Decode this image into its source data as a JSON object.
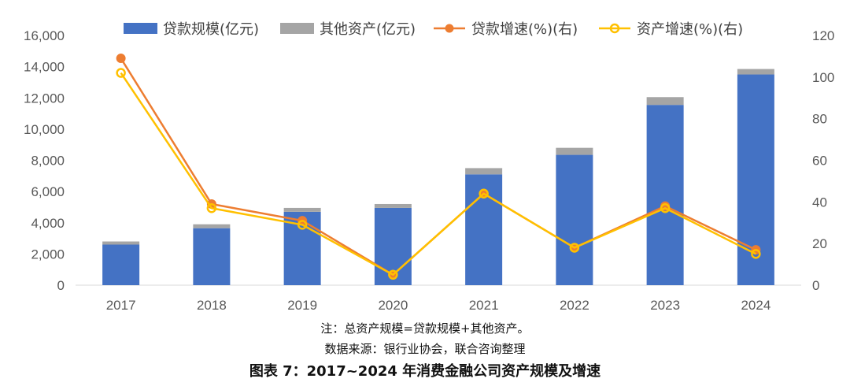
{
  "chart_data": {
    "type": "bar",
    "categories": [
      "2017",
      "2018",
      "2019",
      "2020",
      "2021",
      "2022",
      "2023",
      "2024"
    ],
    "series": [
      {
        "name": "贷款规模(亿元)",
        "kind": "stacked-bar",
        "axis": "left",
        "color": "#4472C4",
        "values": [
          2600,
          3650,
          4700,
          4950,
          7100,
          8350,
          11550,
          13500
        ]
      },
      {
        "name": "其他资产(亿元)",
        "kind": "stacked-bar",
        "axis": "left",
        "color": "#A5A5A5",
        "values": [
          200,
          250,
          250,
          250,
          400,
          450,
          500,
          350
        ]
      },
      {
        "name": "贷款增速(%)(右)",
        "kind": "line",
        "axis": "right",
        "color": "#ED7D31",
        "values": [
          109,
          39,
          31,
          5,
          44,
          18,
          38,
          17
        ]
      },
      {
        "name": "资产增速(%)(右)",
        "kind": "line",
        "axis": "right",
        "color": "#FFC000",
        "values": [
          102,
          37,
          29,
          5,
          44,
          18,
          37,
          15
        ]
      }
    ],
    "y_left": {
      "min": 0,
      "max": 16000,
      "ticks": [
        "0",
        "2,000",
        "4,000",
        "6,000",
        "8,000",
        "10,000",
        "12,000",
        "14,000",
        "16,000"
      ]
    },
    "y_right": {
      "min": 0,
      "max": 120,
      "ticks": [
        "0",
        "20",
        "40",
        "60",
        "80",
        "100",
        "120"
      ]
    },
    "note": "注：总资产规模=贷款规模+其他资产。",
    "source": "数据来源：银行业协会，联合咨询整理",
    "title": "图表 7：2017~2024 年消费金融公司资产规模及增速",
    "legend_position": "top"
  }
}
